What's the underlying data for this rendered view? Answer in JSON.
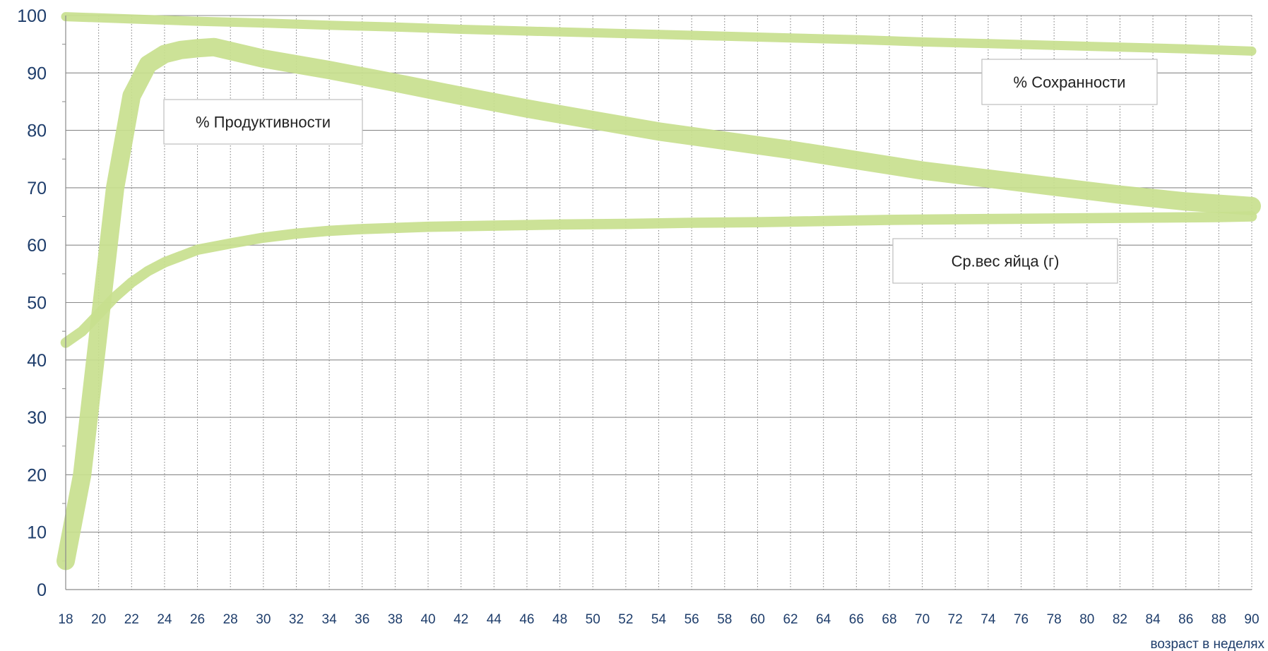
{
  "chart_data": {
    "type": "line",
    "xlabel": "возраст в неделях",
    "ylabel": "",
    "xlim": [
      18,
      90
    ],
    "ylim": [
      0,
      100
    ],
    "x_ticks": [
      18,
      20,
      22,
      24,
      26,
      28,
      30,
      32,
      34,
      36,
      38,
      40,
      42,
      44,
      46,
      48,
      50,
      52,
      54,
      56,
      58,
      60,
      62,
      64,
      66,
      68,
      70,
      72,
      74,
      76,
      78,
      80,
      82,
      84,
      86,
      88,
      90
    ],
    "y_ticks": [
      0,
      10,
      20,
      30,
      40,
      50,
      60,
      70,
      80,
      90,
      100
    ],
    "grid": {
      "horizontal": true,
      "vertical_dotted": true
    },
    "band_color": "#c8e08e",
    "series": [
      {
        "name": "% Сохранности",
        "band_width": 1.6,
        "points": [
          [
            18,
            99.8
          ],
          [
            22,
            99.4
          ],
          [
            26,
            99.0
          ],
          [
            30,
            98.7
          ],
          [
            34,
            98.3
          ],
          [
            38,
            98.0
          ],
          [
            42,
            97.6
          ],
          [
            46,
            97.3
          ],
          [
            50,
            97.0
          ],
          [
            54,
            96.7
          ],
          [
            58,
            96.4
          ],
          [
            62,
            96.1
          ],
          [
            66,
            95.8
          ],
          [
            70,
            95.4
          ],
          [
            74,
            95.1
          ],
          [
            78,
            94.8
          ],
          [
            82,
            94.5
          ],
          [
            86,
            94.2
          ],
          [
            90,
            93.8
          ]
        ]
      },
      {
        "name": "% Продуктивности",
        "band_width": 3.2,
        "points": [
          [
            18,
            5
          ],
          [
            19,
            20
          ],
          [
            20,
            45
          ],
          [
            21,
            70
          ],
          [
            22,
            86
          ],
          [
            23,
            91.5
          ],
          [
            24,
            93.3
          ],
          [
            25,
            94.0
          ],
          [
            26,
            94.3
          ],
          [
            27,
            94.5
          ],
          [
            30,
            92.5
          ],
          [
            34,
            90.5
          ],
          [
            38,
            88.3
          ],
          [
            42,
            86.0
          ],
          [
            46,
            83.8
          ],
          [
            50,
            81.8
          ],
          [
            54,
            79.8
          ],
          [
            58,
            78.2
          ],
          [
            62,
            76.6
          ],
          [
            66,
            74.8
          ],
          [
            70,
            73.0
          ],
          [
            74,
            71.6
          ],
          [
            78,
            70.2
          ],
          [
            82,
            68.8
          ],
          [
            86,
            67.6
          ],
          [
            90,
            66.8
          ]
        ]
      },
      {
        "name": "Ср.вес яйца (г)",
        "band_width": 1.8,
        "points": [
          [
            18,
            43
          ],
          [
            19,
            45
          ],
          [
            20,
            48
          ],
          [
            21,
            51
          ],
          [
            22,
            53.5
          ],
          [
            23,
            55.5
          ],
          [
            24,
            57
          ],
          [
            26,
            59.2
          ],
          [
            28,
            60.3
          ],
          [
            30,
            61.3
          ],
          [
            32,
            62.0
          ],
          [
            34,
            62.5
          ],
          [
            36,
            62.8
          ],
          [
            38,
            63.0
          ],
          [
            40,
            63.2
          ],
          [
            44,
            63.4
          ],
          [
            48,
            63.6
          ],
          [
            52,
            63.7
          ],
          [
            56,
            63.9
          ],
          [
            60,
            64.0
          ],
          [
            64,
            64.2
          ],
          [
            68,
            64.4
          ],
          [
            72,
            64.5
          ],
          [
            76,
            64.6
          ],
          [
            80,
            64.7
          ],
          [
            84,
            64.8
          ],
          [
            88,
            64.9
          ],
          [
            90,
            65.0
          ]
        ]
      }
    ],
    "annotations": [
      {
        "text": "% Продуктивности",
        "series": "% Продуктивности"
      },
      {
        "text": "% Сохранности",
        "series": "% Сохранности"
      },
      {
        "text": "Ср.вес яйца (г)",
        "series": "Ср.вес яйца (г)"
      }
    ]
  }
}
